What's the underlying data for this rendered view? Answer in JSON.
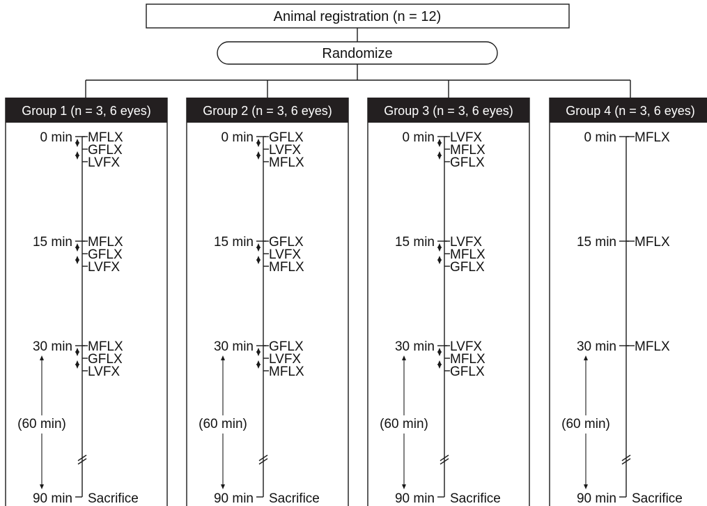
{
  "registration_label": "Animal registration (n = 12)",
  "randomize_label": "Randomize",
  "interval_label": "(60 min)",
  "sacrifice_label": "Sacrifice",
  "time_labels": [
    "0 min",
    "15 min",
    "30 min",
    "90 min"
  ],
  "colors": {
    "header_bg": "#231f20",
    "header_text": "#ffffff",
    "line": "#1a1a1a"
  },
  "groups": [
    {
      "title": "Group 1 (n = 3, 6 eyes)",
      "drugs": [
        "MFLX",
        "GFLX",
        "LVFX"
      ]
    },
    {
      "title": "Group 2 (n = 3, 6 eyes)",
      "drugs": [
        "GFLX",
        "LVFX",
        "MFLX"
      ]
    },
    {
      "title": "Group 3 (n = 3, 6 eyes)",
      "drugs": [
        "LVFX",
        "MFLX",
        "GFLX"
      ]
    },
    {
      "title": "Group 4 (n = 3, 6 eyes)",
      "drugs": [
        "MFLX"
      ]
    }
  ]
}
